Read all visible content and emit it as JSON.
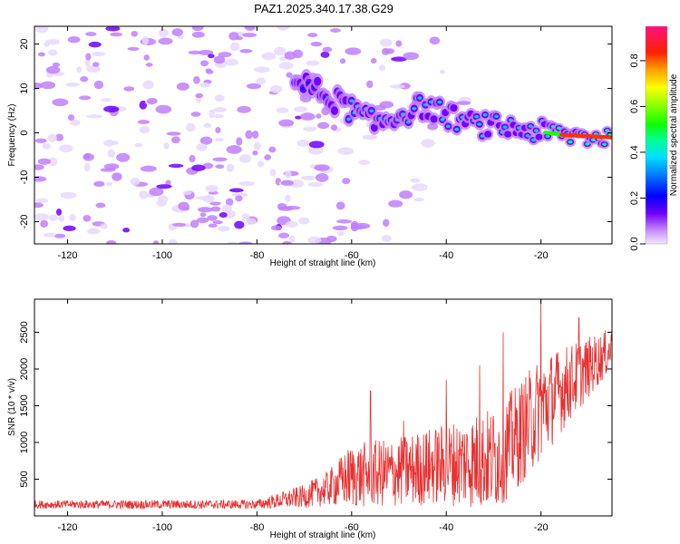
{
  "title": "PAZ1.2025.340.17.38.G29",
  "chart_data": [
    {
      "type": "heatmap",
      "xlabel": "Height of straight line (km)",
      "ylabel": "Frequency (Hz)",
      "xlim": [
        -127,
        -5
      ],
      "ylim": [
        -25,
        24
      ],
      "xticks": [
        -120,
        -100,
        -80,
        -60,
        -40,
        -20
      ],
      "yticks": [
        -20,
        -10,
        0,
        10,
        20
      ],
      "colorbar": {
        "label": "Normalized spectral amplitude",
        "range": [
          0,
          0.95
        ],
        "ticks": [
          0.0,
          0.2,
          0.4,
          0.6,
          0.8
        ],
        "tick_labels": [
          "0.0",
          "0.2",
          "0.4",
          "0.6",
          "0.8"
        ],
        "colors": [
          "#e8d8ff",
          "#c080ff",
          "#7000ff",
          "#0000ff",
          "#00c8ff",
          "#00ff90",
          "#20ff00",
          "#c8ff00",
          "#ffd000",
          "#ff3000",
          "#ff0080"
        ]
      },
      "ridge": [
        {
          "x": -72,
          "y": 12
        },
        {
          "x": -63,
          "y": 7
        },
        {
          "x": -55,
          "y": 2
        },
        {
          "x": -45,
          "y": 6
        },
        {
          "x": -35,
          "y": 2
        },
        {
          "x": -25,
          "y": 1
        },
        {
          "x": -15,
          "y": -0.5
        },
        {
          "x": -5,
          "y": -1
        }
      ]
    },
    {
      "type": "line",
      "xlabel": "Height of straight line (km)",
      "ylabel": "SNR (10 * v/v)",
      "xlim": [
        -127,
        -5
      ],
      "ylim": [
        0,
        2950
      ],
      "xticks": [
        -120,
        -100,
        -80,
        -60,
        -40,
        -20
      ],
      "yticks": [
        500,
        1000,
        1500,
        2000,
        2500
      ],
      "line_color": "#e83030",
      "series": [
        {
          "name": "SNR",
          "envelope": [
            {
              "x": -127,
              "base": 150,
              "amp": 70
            },
            {
              "x": -80,
              "base": 150,
              "amp": 80
            },
            {
              "x": -70,
              "base": 250,
              "amp": 200
            },
            {
              "x": -65,
              "base": 350,
              "amp": 300
            },
            {
              "x": -60,
              "base": 500,
              "amp": 550
            },
            {
              "x": -50,
              "base": 550,
              "amp": 600
            },
            {
              "x": -40,
              "base": 650,
              "amp": 700
            },
            {
              "x": -30,
              "base": 700,
              "amp": 900
            },
            {
              "x": -25,
              "base": 1000,
              "amp": 900
            },
            {
              "x": -20,
              "base": 1400,
              "amp": 900
            },
            {
              "x": -15,
              "base": 1700,
              "amp": 700
            },
            {
              "x": -5,
              "base": 2250,
              "amp": 350
            }
          ],
          "peaks": [
            {
              "x": -56,
              "y": 1700
            },
            {
              "x": -49,
              "y": 1300
            },
            {
              "x": -40,
              "y": 1850
            },
            {
              "x": -33,
              "y": 2050
            },
            {
              "x": -28,
              "y": 2500
            },
            {
              "x": -20,
              "y": 2950
            },
            {
              "x": -12,
              "y": 2700
            },
            {
              "x": -5,
              "y": 2600
            }
          ]
        }
      ]
    }
  ]
}
